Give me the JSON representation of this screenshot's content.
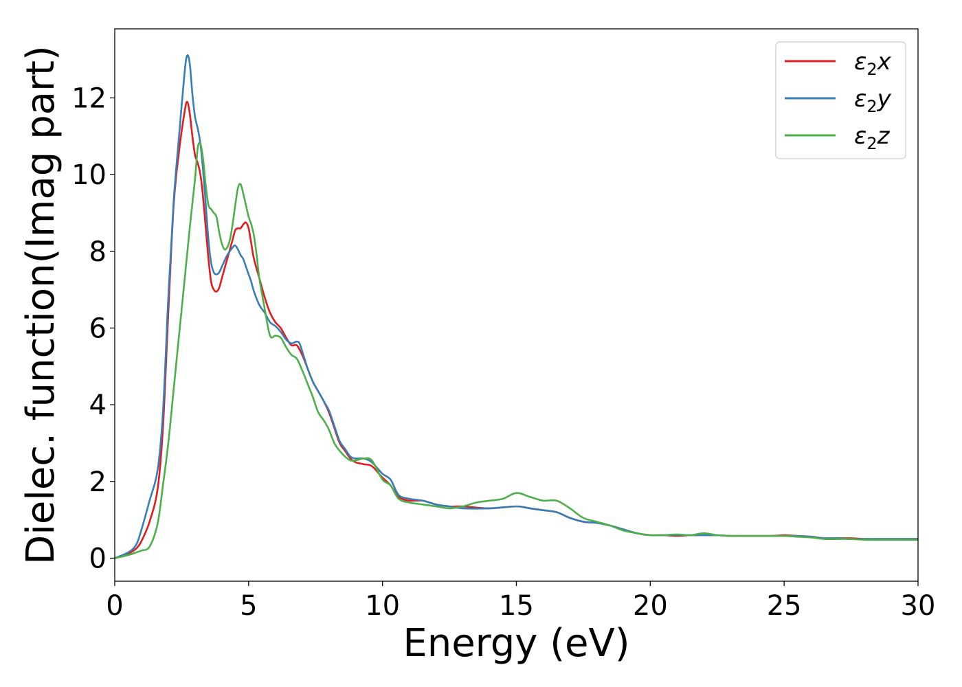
{
  "chart_data": {
    "type": "line",
    "title": "",
    "xlabel": "Energy (eV)",
    "ylabel": "Dielec. function(Imag part)",
    "xlim": [
      0,
      30
    ],
    "ylim": [
      -0.6,
      13.8
    ],
    "x_ticks": [
      0,
      5,
      10,
      15,
      20,
      25,
      30
    ],
    "y_ticks": [
      0,
      2,
      4,
      6,
      8,
      10,
      12
    ],
    "grid": false,
    "legend_position": "top-right",
    "series": [
      {
        "name": "ε₂x",
        "legend_label": "ε",
        "legend_sub": "2",
        "legend_tail": "x",
        "color": "#e41a1c",
        "x": [
          0,
          0.5,
          0.8,
          1.0,
          1.3,
          1.6,
          1.8,
          2.0,
          2.2,
          2.4,
          2.6,
          2.7,
          2.8,
          2.9,
          3.0,
          3.1,
          3.2,
          3.3,
          3.4,
          3.5,
          3.6,
          3.7,
          3.8,
          3.9,
          4.0,
          4.2,
          4.4,
          4.5,
          4.6,
          4.7,
          4.8,
          4.9,
          5.0,
          5.1,
          5.2,
          5.4,
          5.6,
          5.8,
          6.0,
          6.2,
          6.4,
          6.6,
          6.8,
          7.0,
          7.2,
          7.4,
          7.6,
          7.8,
          8.0,
          8.2,
          8.4,
          8.6,
          8.8,
          9.0,
          9.3,
          9.6,
          10.0,
          10.3,
          10.6,
          11.0,
          11.5,
          12.0,
          12.5,
          13.0,
          14.0,
          15.0,
          15.5,
          16.0,
          16.5,
          17.0,
          17.5,
          18.0,
          18.5,
          19.0,
          19.5,
          20.0,
          20.5,
          21.0,
          21.5,
          22.0,
          22.5,
          23.0,
          23.5,
          24.0,
          24.5,
          25.0,
          25.5,
          26.0,
          26.5,
          27.0,
          27.5,
          28.0,
          28.5,
          29.0,
          29.5,
          30.0
        ],
        "values": [
          0,
          0.12,
          0.25,
          0.45,
          0.95,
          1.8,
          3.4,
          6.4,
          9.2,
          10.6,
          11.6,
          11.9,
          11.6,
          11.0,
          10.5,
          10.3,
          10.0,
          9.4,
          8.6,
          7.8,
          7.2,
          7.0,
          6.95,
          7.05,
          7.3,
          7.8,
          8.3,
          8.55,
          8.6,
          8.6,
          8.7,
          8.75,
          8.6,
          8.2,
          7.8,
          7.3,
          6.8,
          6.4,
          6.15,
          6.0,
          5.75,
          5.55,
          5.55,
          5.3,
          4.95,
          4.6,
          4.35,
          4.1,
          3.8,
          3.4,
          3.0,
          2.8,
          2.6,
          2.5,
          2.45,
          2.4,
          2.1,
          1.9,
          1.6,
          1.5,
          1.5,
          1.4,
          1.35,
          1.35,
          1.3,
          1.35,
          1.3,
          1.25,
          1.2,
          1.05,
          0.95,
          0.92,
          0.85,
          0.75,
          0.65,
          0.6,
          0.6,
          0.58,
          0.6,
          0.6,
          0.6,
          0.58,
          0.58,
          0.58,
          0.58,
          0.6,
          0.58,
          0.56,
          0.52,
          0.52,
          0.52,
          0.5,
          0.5,
          0.5,
          0.5,
          0.5
        ]
      },
      {
        "name": "ε₂y",
        "legend_label": "ε",
        "legend_sub": "2",
        "legend_tail": "y",
        "color": "#377eb8",
        "x": [
          0,
          0.5,
          0.8,
          1.0,
          1.3,
          1.6,
          1.8,
          2.0,
          2.2,
          2.4,
          2.6,
          2.7,
          2.8,
          2.9,
          3.0,
          3.1,
          3.2,
          3.3,
          3.4,
          3.5,
          3.6,
          3.7,
          3.8,
          3.9,
          4.0,
          4.2,
          4.4,
          4.5,
          4.6,
          4.7,
          4.8,
          4.9,
          5.0,
          5.1,
          5.2,
          5.4,
          5.6,
          5.8,
          6.0,
          6.2,
          6.4,
          6.6,
          6.8,
          6.9,
          7.0,
          7.2,
          7.4,
          7.6,
          7.8,
          8.0,
          8.2,
          8.4,
          8.6,
          8.8,
          9.0,
          9.3,
          9.6,
          10.0,
          10.3,
          10.6,
          11.0,
          11.5,
          12.0,
          12.5,
          13.0,
          14.0,
          15.0,
          15.5,
          16.0,
          16.5,
          17.0,
          17.5,
          18.0,
          18.5,
          19.0,
          19.5,
          20.0,
          20.5,
          21.0,
          21.5,
          22.0,
          22.5,
          23.0,
          23.5,
          24.0,
          24.5,
          25.0,
          25.5,
          26.0,
          26.5,
          27.0,
          27.5,
          28.0,
          28.5,
          29.0,
          29.5,
          30.0
        ],
        "values": [
          0,
          0.15,
          0.35,
          0.75,
          1.5,
          2.3,
          3.8,
          6.8,
          9.3,
          11.0,
          12.6,
          13.1,
          12.9,
          12.1,
          11.5,
          11.2,
          10.8,
          10.1,
          9.2,
          8.3,
          7.7,
          7.45,
          7.4,
          7.45,
          7.6,
          7.9,
          8.1,
          8.15,
          8.05,
          7.9,
          7.8,
          7.6,
          7.4,
          7.2,
          6.95,
          6.6,
          6.4,
          6.15,
          6.05,
          5.9,
          5.7,
          5.6,
          5.65,
          5.6,
          5.4,
          4.95,
          4.6,
          4.35,
          4.1,
          3.85,
          3.45,
          3.05,
          2.85,
          2.65,
          2.6,
          2.6,
          2.5,
          2.2,
          2.05,
          1.65,
          1.55,
          1.5,
          1.4,
          1.35,
          1.3,
          1.3,
          1.35,
          1.3,
          1.25,
          1.2,
          1.05,
          0.95,
          0.92,
          0.85,
          0.75,
          0.65,
          0.6,
          0.6,
          0.6,
          0.6,
          0.6,
          0.6,
          0.58,
          0.58,
          0.58,
          0.58,
          0.58,
          0.58,
          0.56,
          0.52,
          0.52,
          0.5,
          0.5,
          0.5,
          0.5,
          0.5,
          0.5
        ]
      },
      {
        "name": "ε₂z",
        "legend_label": "ε",
        "legend_sub": "2",
        "legend_tail": "z",
        "color": "#4daf4a",
        "x": [
          0,
          0.5,
          0.8,
          1.0,
          1.3,
          1.6,
          1.8,
          2.0,
          2.2,
          2.4,
          2.6,
          2.8,
          3.0,
          3.1,
          3.2,
          3.3,
          3.4,
          3.5,
          3.6,
          3.7,
          3.8,
          3.9,
          4.0,
          4.1,
          4.2,
          4.3,
          4.4,
          4.5,
          4.6,
          4.7,
          4.8,
          4.9,
          5.0,
          5.1,
          5.2,
          5.3,
          5.4,
          5.6,
          5.8,
          6.0,
          6.2,
          6.4,
          6.6,
          6.8,
          7.0,
          7.2,
          7.4,
          7.6,
          7.8,
          8.0,
          8.2,
          8.4,
          8.6,
          8.8,
          9.0,
          9.3,
          9.6,
          10.0,
          10.3,
          10.6,
          11.0,
          11.5,
          12.0,
          12.5,
          13.0,
          13.5,
          14.0,
          14.5,
          15.0,
          15.5,
          16.0,
          16.5,
          17.0,
          17.5,
          18.0,
          18.5,
          19.0,
          19.5,
          20.0,
          20.5,
          21.0,
          21.5,
          22.0,
          22.5,
          23.0,
          23.5,
          24.0,
          24.5,
          25.0,
          25.5,
          26.0,
          26.5,
          27.0,
          27.5,
          28.0,
          28.5,
          29.0,
          29.5,
          30.0
        ],
        "values": [
          0,
          0.08,
          0.15,
          0.2,
          0.3,
          0.9,
          1.9,
          3.0,
          4.4,
          5.8,
          7.2,
          8.6,
          9.9,
          10.7,
          10.8,
          10.4,
          9.7,
          9.2,
          9.1,
          9.0,
          8.9,
          8.5,
          8.2,
          8.05,
          8.1,
          8.3,
          8.7,
          9.2,
          9.65,
          9.75,
          9.5,
          9.2,
          8.9,
          8.7,
          8.4,
          7.9,
          7.3,
          6.5,
          5.8,
          5.8,
          5.75,
          5.5,
          5.3,
          5.2,
          4.9,
          4.55,
          4.2,
          3.8,
          3.6,
          3.35,
          3.0,
          2.8,
          2.65,
          2.55,
          2.55,
          2.6,
          2.55,
          2.05,
          1.9,
          1.55,
          1.45,
          1.4,
          1.35,
          1.3,
          1.35,
          1.45,
          1.5,
          1.55,
          1.7,
          1.6,
          1.5,
          1.5,
          1.3,
          1.05,
          0.95,
          0.85,
          0.72,
          0.65,
          0.6,
          0.6,
          0.62,
          0.6,
          0.65,
          0.6,
          0.58,
          0.58,
          0.58,
          0.58,
          0.58,
          0.56,
          0.54,
          0.5,
          0.5,
          0.5,
          0.48,
          0.48,
          0.48,
          0.48,
          0.48
        ]
      }
    ]
  }
}
